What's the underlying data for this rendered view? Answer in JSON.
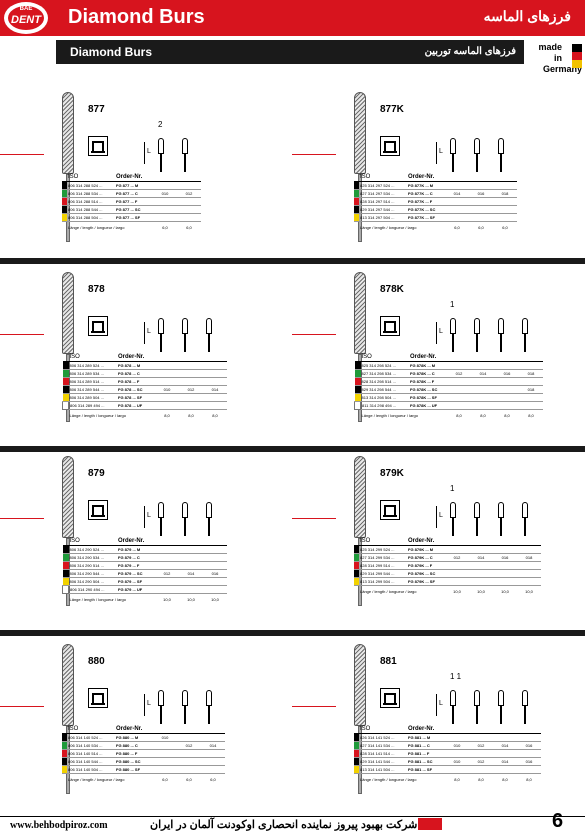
{
  "header": {
    "logo_top": "BAE",
    "logo_main": "DENT",
    "title_en": "Diamond Burs",
    "title_fa": "فرزهای الماسه",
    "subtitle_en": "Diamond Burs",
    "subtitle_fa": "فرزهای الماسه توربین",
    "made_lines": [
      "made",
      "in",
      "Germany"
    ],
    "flag_colors": [
      "#000000",
      "#d7141e",
      "#f2c200"
    ]
  },
  "swatch_colors": [
    "#000000",
    "#1f9a3a",
    "#d7141e",
    "#000000",
    "#f2d200",
    "#ffffff"
  ],
  "table_header": {
    "iso": "ISO",
    "order": "Order-Nr."
  },
  "length_label": "Länge / length / longueur / largo",
  "L_label": "L",
  "panels": [
    {
      "model": "877",
      "hdr": "2",
      "rows": [
        {
          "iso": "806 314 288 524 ...",
          "ord": "FG 877 ... M",
          "vals": []
        },
        {
          "iso": "806 314 288 534 ...",
          "ord": "FG 877 ... C",
          "vals": [
            "010",
            "012"
          ]
        },
        {
          "iso": "806 314 288 514 ...",
          "ord": "FG 877 ... F",
          "vals": []
        },
        {
          "iso": "806 314 288 544 ...",
          "ord": "FG 877 ... SC",
          "vals": []
        },
        {
          "iso": "806 314 288 504 ...",
          "ord": "FG 877 ... SF",
          "vals": []
        }
      ],
      "lengths": [
        "6,0",
        "6,0"
      ]
    },
    {
      "model": "877K",
      "hdr": "",
      "rows": [
        {
          "iso": "825 314 297 524 ...",
          "ord": "FG 877K ... M",
          "vals": []
        },
        {
          "iso": "827 314 297 534 ...",
          "ord": "FG 877K ... C",
          "vals": [
            "014",
            "016",
            "018"
          ]
        },
        {
          "iso": "828 314 297 514 ...",
          "ord": "FG 877K ... F",
          "vals": []
        },
        {
          "iso": "829 314 297 544 ...",
          "ord": "FG 877K ... SC",
          "vals": []
        },
        {
          "iso": "813 314 297 504 ...",
          "ord": "FG 877K ... SF",
          "vals": []
        }
      ],
      "lengths": [
        "6,0",
        "6,0",
        "6,0"
      ]
    },
    {
      "model": "878",
      "hdr": "",
      "rows": [
        {
          "iso": "806 314 289 524 ...",
          "ord": "FG 878 ... M",
          "vals": []
        },
        {
          "iso": "806 314 289 534 ...",
          "ord": "FG 878 ... C",
          "vals": []
        },
        {
          "iso": "806 314 289 514 ...",
          "ord": "FG 878 ... F",
          "vals": []
        },
        {
          "iso": "806 314 289 544 ...",
          "ord": "FG 878 ... SC",
          "vals": [
            "010",
            "012",
            "014"
          ]
        },
        {
          "iso": "806 314 289 504 ...",
          "ord": "FG 878 ... SF",
          "vals": []
        },
        {
          "iso": "806 314 289 494 ...",
          "ord": "FG 878 ... UF",
          "vals": []
        }
      ],
      "lengths": [
        "8,0",
        "8,0",
        "8,0"
      ]
    },
    {
      "model": "878K",
      "hdr": "1",
      "rows": [
        {
          "iso": "825 314 298 524 ...",
          "ord": "FG 878K ... M",
          "vals": []
        },
        {
          "iso": "827 314 298 534 ...",
          "ord": "FG 878K ... C",
          "vals": [
            "012",
            "014",
            "016",
            "018"
          ]
        },
        {
          "iso": "828 314 298 514 ...",
          "ord": "FG 878K ... F",
          "vals": []
        },
        {
          "iso": "829 314 298 544 ...",
          "ord": "FG 878K ... SC",
          "vals": [
            "",
            "",
            "",
            "018"
          ]
        },
        {
          "iso": "813 314 298 504 ...",
          "ord": "FG 878K ... SF",
          "vals": []
        },
        {
          "iso": "811 314 298 494 ...",
          "ord": "FG 878K ... UF",
          "vals": []
        }
      ],
      "lengths": [
        "8,0",
        "8,0",
        "8,0",
        "8,0"
      ]
    },
    {
      "model": "879",
      "hdr": "",
      "rows": [
        {
          "iso": "806 314 290 524 ...",
          "ord": "FG 879 ... M",
          "vals": []
        },
        {
          "iso": "806 314 290 534 ...",
          "ord": "FG 879 ... C",
          "vals": []
        },
        {
          "iso": "806 314 290 514 ...",
          "ord": "FG 879 ... F",
          "vals": []
        },
        {
          "iso": "806 314 290 544 ...",
          "ord": "FG 879 ... SC",
          "vals": [
            "012",
            "014",
            "016"
          ]
        },
        {
          "iso": "806 314 290 504 ...",
          "ord": "FG 879 ... SF",
          "vals": []
        },
        {
          "iso": "806 314 290 494 ...",
          "ord": "FG 879 ... UF",
          "vals": []
        }
      ],
      "lengths": [
        "10,0",
        "10,0",
        "10,0"
      ]
    },
    {
      "model": "879K",
      "hdr": "1",
      "rows": [
        {
          "iso": "825 314 299 524 ...",
          "ord": "FG 879K ... M",
          "vals": []
        },
        {
          "iso": "827 314 299 534 ...",
          "ord": "FG 879K ... C",
          "vals": [
            "012",
            "014",
            "016",
            "018"
          ]
        },
        {
          "iso": "828 314 299 514 ...",
          "ord": "FG 879K ... F",
          "vals": []
        },
        {
          "iso": "829 314 299 544 ...",
          "ord": "FG 879K ... SC",
          "vals": []
        },
        {
          "iso": "813 314 299 504 ...",
          "ord": "FG 879K ... SF",
          "vals": []
        }
      ],
      "lengths": [
        "10,0",
        "10,0",
        "10,0",
        "10,0"
      ]
    },
    {
      "model": "880",
      "hdr": "",
      "rows": [
        {
          "iso": "806 314 140 524 ...",
          "ord": "FG 880 ... M",
          "vals": [
            "010"
          ]
        },
        {
          "iso": "806 314 140 534 ...",
          "ord": "FG 880 ... C",
          "vals": [
            "",
            "012",
            "014"
          ]
        },
        {
          "iso": "806 314 140 514 ...",
          "ord": "FG 880 ... F",
          "vals": []
        },
        {
          "iso": "806 314 140 544 ...",
          "ord": "FG 880 ... SC",
          "vals": []
        },
        {
          "iso": "806 314 140 504 ...",
          "ord": "FG 880 ... SF",
          "vals": []
        }
      ],
      "lengths": [
        "6,0",
        "6,0",
        "6,0"
      ]
    },
    {
      "model": "881",
      "hdr": "1 1",
      "rows": [
        {
          "iso": "826 314 141 524 ...",
          "ord": "FG 881 ... M",
          "vals": []
        },
        {
          "iso": "827 314 141 534 ...",
          "ord": "FG 881 ... C",
          "vals": [
            "010",
            "012",
            "014",
            "016"
          ]
        },
        {
          "iso": "828 314 141 514 ...",
          "ord": "FG 881 ... F",
          "vals": []
        },
        {
          "iso": "829 314 141 544 ...",
          "ord": "FG 881 ... SC",
          "vals": [
            "010",
            "012",
            "014",
            "016"
          ]
        },
        {
          "iso": "813 314 141 504 ...",
          "ord": "FG 881 ... SF",
          "vals": []
        }
      ],
      "lengths": [
        "8,0",
        "8,0",
        "8,0",
        "8,0"
      ]
    }
  ],
  "footer": {
    "company_fa": "شرکت بهبود پیروز نماینده انحصاری اوکودنت آلمان در ایران",
    "url": "www.behbodpiroz.com",
    "page": "6"
  }
}
